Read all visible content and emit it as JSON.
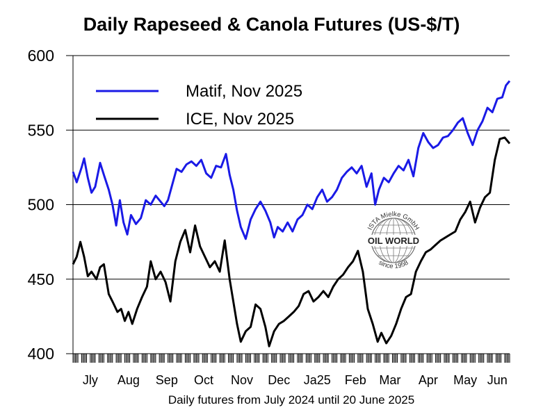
{
  "chart_data": {
    "type": "line",
    "title": "Daily Rapeseed & Canola Futures (US-$/T)",
    "xlabel": "Daily futures from July 2024 until 20 June 2025",
    "ylabel": "",
    "ylim": [
      400,
      600
    ],
    "yticks": [
      400,
      450,
      500,
      550,
      600
    ],
    "xlim": [
      "2024-07-01",
      "2025-06-20"
    ],
    "month_labels": [
      "Jly",
      "Aug",
      "Sep",
      "Oct",
      "Nov",
      "Dec",
      "Ja25",
      "Feb",
      "Mar",
      "Apr",
      "May",
      "Jun"
    ],
    "grid": "horizontal",
    "legend": "top-left",
    "series": [
      {
        "name": "Matif, Nov 2025",
        "color": "#1a1ae6",
        "points": [
          [
            "2024-07-01",
            522
          ],
          [
            "2024-07-04",
            515
          ],
          [
            "2024-07-08",
            525
          ],
          [
            "2024-07-10",
            531
          ],
          [
            "2024-07-13",
            518
          ],
          [
            "2024-07-16",
            508
          ],
          [
            "2024-07-19",
            512
          ],
          [
            "2024-07-23",
            528
          ],
          [
            "2024-07-26",
            520
          ],
          [
            "2024-07-30",
            510
          ],
          [
            "2024-08-02",
            500
          ],
          [
            "2024-08-05",
            486
          ],
          [
            "2024-08-08",
            503
          ],
          [
            "2024-08-11",
            488
          ],
          [
            "2024-08-14",
            480
          ],
          [
            "2024-08-17",
            493
          ],
          [
            "2024-08-21",
            487
          ],
          [
            "2024-08-25",
            491
          ],
          [
            "2024-08-29",
            503
          ],
          [
            "2024-09-02",
            500
          ],
          [
            "2024-09-06",
            506
          ],
          [
            "2024-09-10",
            502
          ],
          [
            "2024-09-13",
            499
          ],
          [
            "2024-09-16",
            503
          ],
          [
            "2024-09-19",
            512
          ],
          [
            "2024-09-23",
            524
          ],
          [
            "2024-09-27",
            522
          ],
          [
            "2024-10-01",
            527
          ],
          [
            "2024-10-05",
            529
          ],
          [
            "2024-10-09",
            526
          ],
          [
            "2024-10-13",
            530
          ],
          [
            "2024-10-17",
            521
          ],
          [
            "2024-10-21",
            518
          ],
          [
            "2024-10-25",
            526
          ],
          [
            "2024-10-29",
            525
          ],
          [
            "2024-11-02",
            534
          ],
          [
            "2024-11-05",
            520
          ],
          [
            "2024-11-08",
            510
          ],
          [
            "2024-11-11",
            496
          ],
          [
            "2024-11-14",
            485
          ],
          [
            "2024-11-18",
            477
          ],
          [
            "2024-11-22",
            490
          ],
          [
            "2024-11-26",
            497
          ],
          [
            "2024-11-30",
            502
          ],
          [
            "2024-12-04",
            496
          ],
          [
            "2024-12-08",
            488
          ],
          [
            "2024-12-11",
            478
          ],
          [
            "2024-12-14",
            485
          ],
          [
            "2024-12-18",
            482
          ],
          [
            "2024-12-22",
            488
          ],
          [
            "2024-12-26",
            482
          ],
          [
            "2024-12-30",
            490
          ],
          [
            "2025-01-03",
            493
          ],
          [
            "2025-01-07",
            500
          ],
          [
            "2025-01-11",
            497
          ],
          [
            "2025-01-15",
            505
          ],
          [
            "2025-01-19",
            510
          ],
          [
            "2025-01-23",
            502
          ],
          [
            "2025-01-27",
            505
          ],
          [
            "2025-01-31",
            510
          ],
          [
            "2025-02-04",
            518
          ],
          [
            "2025-02-08",
            522
          ],
          [
            "2025-02-12",
            525
          ],
          [
            "2025-02-16",
            521
          ],
          [
            "2025-02-20",
            526
          ],
          [
            "2025-02-24",
            512
          ],
          [
            "2025-02-28",
            521
          ],
          [
            "2025-03-03",
            500
          ],
          [
            "2025-03-06",
            510
          ],
          [
            "2025-03-10",
            518
          ],
          [
            "2025-03-14",
            515
          ],
          [
            "2025-03-18",
            521
          ],
          [
            "2025-03-22",
            526
          ],
          [
            "2025-03-26",
            523
          ],
          [
            "2025-03-30",
            530
          ],
          [
            "2025-04-03",
            519
          ],
          [
            "2025-04-07",
            538
          ],
          [
            "2025-04-11",
            548
          ],
          [
            "2025-04-15",
            542
          ],
          [
            "2025-04-19",
            538
          ],
          [
            "2025-04-23",
            540
          ],
          [
            "2025-04-27",
            545
          ],
          [
            "2025-05-01",
            546
          ],
          [
            "2025-05-05",
            550
          ],
          [
            "2025-05-09",
            555
          ],
          [
            "2025-05-13",
            558
          ],
          [
            "2025-05-17",
            548
          ],
          [
            "2025-05-21",
            540
          ],
          [
            "2025-05-25",
            550
          ],
          [
            "2025-05-29",
            556
          ],
          [
            "2025-06-02",
            565
          ],
          [
            "2025-06-06",
            562
          ],
          [
            "2025-06-10",
            571
          ],
          [
            "2025-06-14",
            572
          ],
          [
            "2025-06-17",
            580
          ],
          [
            "2025-06-20",
            583
          ]
        ]
      },
      {
        "name": "ICE, Nov 2025",
        "color": "#000000",
        "points": [
          [
            "2024-07-01",
            460
          ],
          [
            "2024-07-04",
            465
          ],
          [
            "2024-07-07",
            475
          ],
          [
            "2024-07-10",
            465
          ],
          [
            "2024-07-13",
            452
          ],
          [
            "2024-07-16",
            455
          ],
          [
            "2024-07-20",
            450
          ],
          [
            "2024-07-23",
            458
          ],
          [
            "2024-07-26",
            460
          ],
          [
            "2024-07-30",
            440
          ],
          [
            "2024-08-02",
            435
          ],
          [
            "2024-08-06",
            428
          ],
          [
            "2024-08-09",
            430
          ],
          [
            "2024-08-12",
            422
          ],
          [
            "2024-08-15",
            428
          ],
          [
            "2024-08-18",
            420
          ],
          [
            "2024-08-22",
            430
          ],
          [
            "2024-08-26",
            438
          ],
          [
            "2024-08-30",
            445
          ],
          [
            "2024-09-02",
            462
          ],
          [
            "2024-09-06",
            450
          ],
          [
            "2024-09-10",
            455
          ],
          [
            "2024-09-14",
            448
          ],
          [
            "2024-09-18",
            435
          ],
          [
            "2024-09-22",
            462
          ],
          [
            "2024-09-26",
            475
          ],
          [
            "2024-09-30",
            483
          ],
          [
            "2024-10-04",
            468
          ],
          [
            "2024-10-08",
            486
          ],
          [
            "2024-10-12",
            472
          ],
          [
            "2024-10-16",
            465
          ],
          [
            "2024-10-20",
            458
          ],
          [
            "2024-10-24",
            462
          ],
          [
            "2024-10-28",
            455
          ],
          [
            "2024-11-01",
            476
          ],
          [
            "2024-11-05",
            450
          ],
          [
            "2024-11-08",
            435
          ],
          [
            "2024-11-11",
            420
          ],
          [
            "2024-11-14",
            408
          ],
          [
            "2024-11-18",
            415
          ],
          [
            "2024-11-22",
            418
          ],
          [
            "2024-11-26",
            433
          ],
          [
            "2024-11-30",
            430
          ],
          [
            "2024-12-04",
            418
          ],
          [
            "2024-12-07",
            405
          ],
          [
            "2024-12-11",
            415
          ],
          [
            "2024-12-15",
            420
          ],
          [
            "2024-12-19",
            422
          ],
          [
            "2024-12-23",
            425
          ],
          [
            "2024-12-27",
            428
          ],
          [
            "2024-12-31",
            432
          ],
          [
            "2025-01-04",
            440
          ],
          [
            "2025-01-08",
            442
          ],
          [
            "2025-01-12",
            435
          ],
          [
            "2025-01-16",
            438
          ],
          [
            "2025-01-20",
            442
          ],
          [
            "2025-01-24",
            438
          ],
          [
            "2025-01-28",
            445
          ],
          [
            "2025-02-01",
            450
          ],
          [
            "2025-02-05",
            453
          ],
          [
            "2025-02-09",
            458
          ],
          [
            "2025-02-13",
            462
          ],
          [
            "2025-02-17",
            469
          ],
          [
            "2025-02-21",
            455
          ],
          [
            "2025-02-25",
            430
          ],
          [
            "2025-03-01",
            420
          ],
          [
            "2025-03-05",
            408
          ],
          [
            "2025-03-08",
            414
          ],
          [
            "2025-03-12",
            407
          ],
          [
            "2025-03-16",
            412
          ],
          [
            "2025-03-20",
            420
          ],
          [
            "2025-03-24",
            430
          ],
          [
            "2025-03-28",
            438
          ],
          [
            "2025-04-01",
            440
          ],
          [
            "2025-04-05",
            455
          ],
          [
            "2025-04-09",
            462
          ],
          [
            "2025-04-13",
            468
          ],
          [
            "2025-04-17",
            470
          ],
          [
            "2025-04-21",
            473
          ],
          [
            "2025-04-25",
            476
          ],
          [
            "2025-04-29",
            478
          ],
          [
            "2025-05-03",
            480
          ],
          [
            "2025-05-07",
            482
          ],
          [
            "2025-05-11",
            490
          ],
          [
            "2025-05-15",
            495
          ],
          [
            "2025-05-19",
            502
          ],
          [
            "2025-05-23",
            488
          ],
          [
            "2025-05-27",
            498
          ],
          [
            "2025-05-31",
            505
          ],
          [
            "2025-06-04",
            508
          ],
          [
            "2025-06-08",
            530
          ],
          [
            "2025-06-12",
            544
          ],
          [
            "2025-06-16",
            545
          ],
          [
            "2025-06-20",
            541
          ]
        ]
      }
    ]
  },
  "logo": {
    "top_text": "ISTA Mielke GmbH",
    "main_text": "OIL WORLD",
    "bottom_text": "since 1958"
  }
}
